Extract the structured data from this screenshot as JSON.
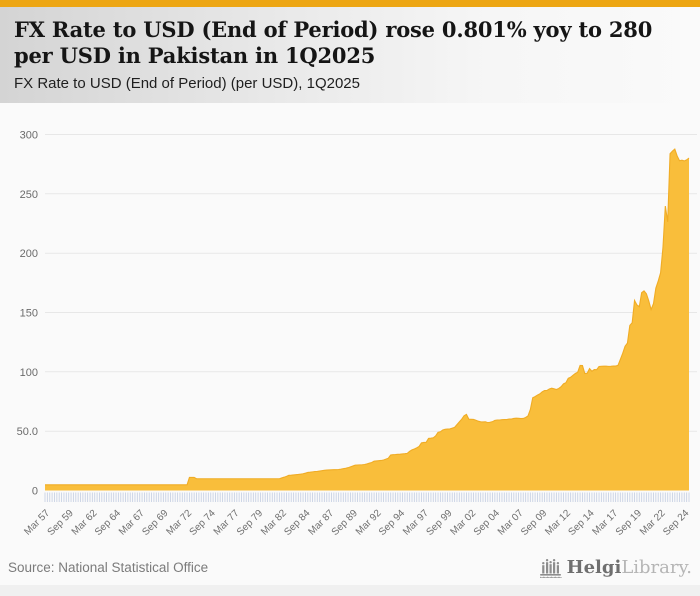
{
  "page": {
    "topbar_color": "#EDA613",
    "background": "#fafafa"
  },
  "header": {
    "title_line1": "FX Rate to USD (End of Period) rose 0.801% yoy to 280",
    "title_line2": "per USD in Pakistan in 1Q2025",
    "subtitle": "FX Rate to USD (End of Period) (per USD), 1Q2025"
  },
  "footer": {
    "source": "Source: National Statistical Office",
    "logo_primary": "Helgi",
    "logo_secondary": "Library."
  },
  "chart_data": {
    "type": "area",
    "title": "FX Rate to USD (End of Period) rose 0.801% yoy to 280 per USD in Pakistan in 1Q2025",
    "subtitle": "FX Rate to USD (End of Period) (per USD), 1Q2025",
    "country": "Pakistan",
    "unit": "PKR per USD",
    "frequency": "quarterly",
    "x_start": "1957Q1",
    "x_end": "2025Q1",
    "latest_value": 280,
    "yoy_change_pct": 0.801,
    "ylim": [
      0,
      300
    ],
    "grid": "horizontal",
    "legend": false,
    "yticks": [
      {
        "v": 0,
        "label": "0"
      },
      {
        "v": 50,
        "label": "50.0"
      },
      {
        "v": 100,
        "label": "100"
      },
      {
        "v": 150,
        "label": "150"
      },
      {
        "v": 200,
        "label": "200"
      },
      {
        "v": 250,
        "label": "250"
      },
      {
        "v": 300,
        "label": "300"
      }
    ],
    "xtick_every": 10,
    "xtick_labels": [
      "Mar 57",
      "Sep 59",
      "Mar 62",
      "Sep 64",
      "Mar 67",
      "Sep 69",
      "Mar 72",
      "Sep 74",
      "Mar 77",
      "Sep 79",
      "Mar 82",
      "Sep 84",
      "Mar 87",
      "Sep 89",
      "Mar 92",
      "Sep 94",
      "Mar 97",
      "Sep 99",
      "Mar 02",
      "Sep 04",
      "Mar 07",
      "Sep 09",
      "Mar 12",
      "Sep 14",
      "Mar 17",
      "Sep 19",
      "Mar 22",
      "Sep 24"
    ],
    "colors": {
      "fill": "#F9BE3B",
      "stroke": "#F0AC25",
      "grid": "#e7e7e7",
      "axis_text": "#6b6b6b",
      "tick_comb": "#c9d2e4",
      "plot_bg": "#fafafa"
    },
    "values": [
      4.76,
      4.76,
      4.76,
      4.76,
      4.76,
      4.76,
      4.76,
      4.76,
      4.76,
      4.76,
      4.76,
      4.76,
      4.76,
      4.76,
      4.76,
      4.76,
      4.76,
      4.76,
      4.76,
      4.76,
      4.76,
      4.76,
      4.76,
      4.76,
      4.76,
      4.76,
      4.76,
      4.76,
      4.76,
      4.76,
      4.76,
      4.76,
      4.76,
      4.76,
      4.76,
      4.76,
      4.76,
      4.76,
      4.76,
      4.76,
      4.76,
      4.76,
      4.76,
      4.76,
      4.76,
      4.76,
      4.76,
      4.76,
      4.76,
      4.76,
      4.76,
      4.76,
      4.76,
      4.76,
      4.76,
      4.76,
      4.76,
      4.76,
      4.76,
      4.76,
      4.76,
      11.0,
      11.0,
      11.0,
      9.9,
      9.9,
      9.9,
      9.9,
      9.9,
      9.9,
      9.9,
      9.9,
      9.9,
      9.9,
      9.9,
      9.9,
      9.9,
      9.9,
      9.9,
      9.9,
      9.9,
      9.9,
      9.9,
      9.9,
      9.9,
      9.9,
      9.9,
      9.9,
      9.9,
      9.9,
      9.9,
      9.9,
      9.9,
      9.9,
      9.9,
      9.9,
      9.9,
      9.9,
      9.9,
      9.9,
      10.6,
      11.2,
      11.9,
      12.8,
      12.9,
      13.1,
      13.3,
      13.5,
      13.8,
      14.1,
      14.6,
      15.2,
      15.4,
      15.7,
      16.0,
      16.1,
      16.4,
      16.7,
      17.0,
      17.2,
      17.3,
      17.4,
      17.5,
      17.5,
      17.7,
      18.0,
      18.4,
      18.7,
      19.2,
      19.9,
      20.6,
      21.4,
      21.5,
      21.6,
      21.7,
      21.9,
      22.4,
      23.0,
      23.6,
      24.7,
      24.9,
      25.1,
      25.3,
      25.7,
      26.4,
      27.2,
      29.9,
      30.2,
      30.3,
      30.5,
      30.6,
      30.8,
      31.0,
      31.3,
      33.0,
      34.2,
      35.0,
      35.9,
      37.1,
      40.1,
      40.5,
      40.6,
      43.9,
      44.1,
      44.4,
      46.0,
      49.0,
      49.5,
      51.0,
      51.6,
      51.8,
      51.9,
      52.5,
      53.2,
      55.5,
      57.8,
      60.1,
      63.0,
      64.1,
      60.1,
      60.0,
      59.9,
      59.2,
      58.4,
      57.9,
      57.8,
      57.9,
      57.2,
      57.5,
      58.0,
      59.1,
      59.4,
      59.4,
      59.7,
      59.8,
      59.8,
      60.2,
      60.2,
      60.7,
      60.9,
      60.8,
      60.6,
      60.7,
      61.5,
      62.8,
      68.3,
      78.2,
      79.1,
      80.4,
      81.4,
      83.1,
      84.2,
      84.3,
      85.5,
      86.2,
      85.7,
      85.1,
      86.0,
      87.5,
      89.9,
      90.8,
      94.5,
      95.4,
      97.1,
      98.6,
      99.7,
      105.4,
      105.3,
      98.6,
      98.8,
      102.7,
      100.5,
      101.9,
      101.8,
      104.5,
      104.7,
      104.8,
      104.8,
      104.6,
      104.7,
      104.9,
      104.9,
      105.4,
      110.4,
      115.6,
      121.5,
      124.2,
      139.1,
      141.4,
      160.1,
      156.4,
      154.9,
      166.7,
      168.2,
      165.8,
      159.8,
      152.5,
      157.5,
      170.5,
      176.5,
      183.5,
      204.8,
      239.7,
      226.4,
      283.8,
      286.0,
      287.7,
      281.9,
      277.9,
      278.3,
      277.7,
      278.6,
      280.2
    ]
  }
}
